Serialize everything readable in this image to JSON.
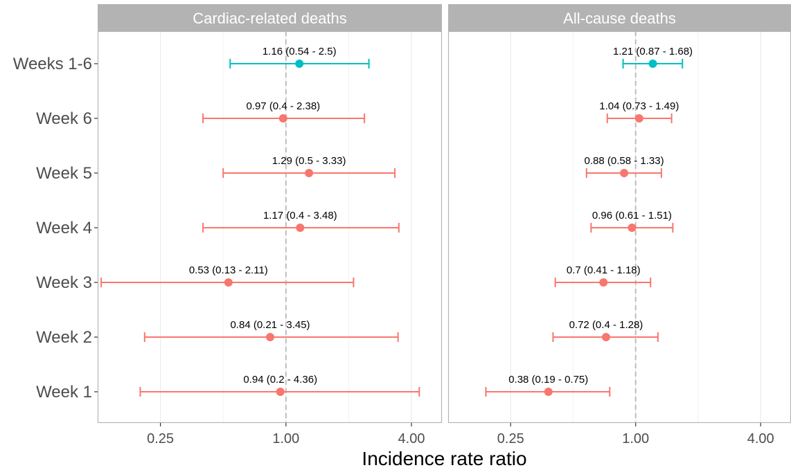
{
  "chart_data": {
    "type": "forest",
    "xlabel": "Incidence rate ratio",
    "x_scale": "log2",
    "xlim": [
      0.125,
      5.6
    ],
    "x_ticks": [
      0.25,
      1.0,
      4.0
    ],
    "x_tick_labels": [
      "0.25",
      "1.00",
      "4.00"
    ],
    "reference_line": 1.0,
    "grid": true,
    "rows": [
      "Weeks 1-6",
      "Week 6",
      "Week 5",
      "Week 4",
      "Week 3",
      "Week 2",
      "Week 1"
    ],
    "colors": {
      "overall": "#00bfc4",
      "weekly": "#f8766d"
    },
    "panels": [
      {
        "title": "Cardiac-related deaths",
        "points": [
          {
            "row": "Weeks 1-6",
            "group": "overall",
            "estimate": 1.16,
            "lower": 0.54,
            "upper": 2.5,
            "label": "1.16 (0.54 - 2.5)"
          },
          {
            "row": "Week 6",
            "group": "weekly",
            "estimate": 0.97,
            "lower": 0.4,
            "upper": 2.38,
            "label": "0.97 (0.4 - 2.38)"
          },
          {
            "row": "Week 5",
            "group": "weekly",
            "estimate": 1.29,
            "lower": 0.5,
            "upper": 3.33,
            "label": "1.29 (0.5 - 3.33)"
          },
          {
            "row": "Week 4",
            "group": "weekly",
            "estimate": 1.17,
            "lower": 0.4,
            "upper": 3.48,
            "label": "1.17 (0.4 - 3.48)"
          },
          {
            "row": "Week 3",
            "group": "weekly",
            "estimate": 0.53,
            "lower": 0.13,
            "upper": 2.11,
            "label": "0.53 (0.13 - 2.11)"
          },
          {
            "row": "Week 2",
            "group": "weekly",
            "estimate": 0.84,
            "lower": 0.21,
            "upper": 3.45,
            "label": "0.84 (0.21 - 3.45)"
          },
          {
            "row": "Week 1",
            "group": "weekly",
            "estimate": 0.94,
            "lower": 0.2,
            "upper": 4.36,
            "label": "0.94 (0.2 - 4.36)"
          }
        ]
      },
      {
        "title": "All-cause deaths",
        "points": [
          {
            "row": "Weeks 1-6",
            "group": "overall",
            "estimate": 1.21,
            "lower": 0.87,
            "upper": 1.68,
            "label": "1.21 (0.87 - 1.68)"
          },
          {
            "row": "Week 6",
            "group": "weekly",
            "estimate": 1.04,
            "lower": 0.73,
            "upper": 1.49,
            "label": "1.04 (0.73 - 1.49)"
          },
          {
            "row": "Week 5",
            "group": "weekly",
            "estimate": 0.88,
            "lower": 0.58,
            "upper": 1.33,
            "label": "0.88 (0.58 - 1.33)"
          },
          {
            "row": "Week 4",
            "group": "weekly",
            "estimate": 0.96,
            "lower": 0.61,
            "upper": 1.51,
            "label": "0.96 (0.61 - 1.51)"
          },
          {
            "row": "Week 3",
            "group": "weekly",
            "estimate": 0.7,
            "lower": 0.41,
            "upper": 1.18,
            "label": "0.7 (0.41 - 1.18)"
          },
          {
            "row": "Week 2",
            "group": "weekly",
            "estimate": 0.72,
            "lower": 0.4,
            "upper": 1.28,
            "label": "0.72 (0.4 - 1.28)"
          },
          {
            "row": "Week 1",
            "group": "weekly",
            "estimate": 0.38,
            "lower": 0.19,
            "upper": 0.75,
            "label": "0.38 (0.19 - 0.75)"
          }
        ]
      }
    ]
  }
}
